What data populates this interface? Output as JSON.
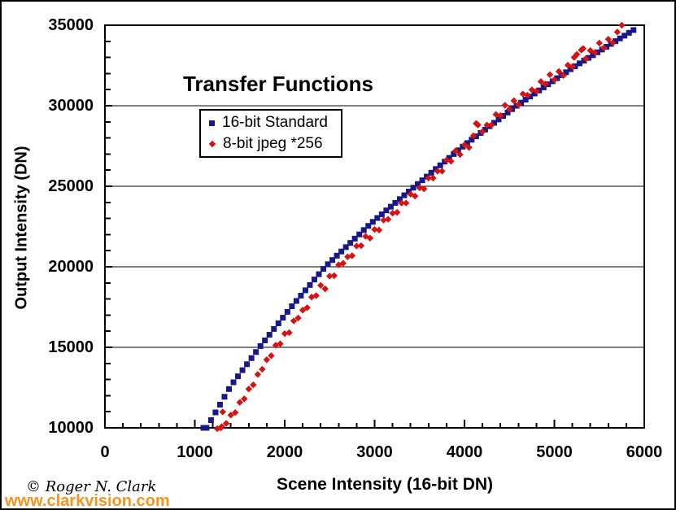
{
  "watermark": {
    "copyright": "© Roger N. Clark",
    "website": "www.clarkvision.com",
    "website_color": "#F7941D"
  },
  "chart_data": {
    "type": "scatter",
    "title": "Transfer Functions",
    "xlabel": "Scene Intensity (16-bit DN)",
    "ylabel": "Output Intensity (DN)",
    "xlim": [
      0,
      6000
    ],
    "ylim": [
      10000,
      35000
    ],
    "x_major_ticks": [
      0,
      1000,
      2000,
      3000,
      4000,
      5000,
      6000
    ],
    "x_minor_step": 200,
    "y_major_ticks": [
      10000,
      15000,
      20000,
      25000,
      30000,
      35000
    ],
    "y_minor_step": 1000,
    "grid": "horizontal-major",
    "legend_position": "upper-left-inside",
    "frame_color": "#000000",
    "series": [
      {
        "name": "16-bit Standard",
        "marker": "square",
        "color": "#181888",
        "points": [
          [
            1095,
            10000
          ],
          [
            1130,
            10000
          ],
          [
            1180,
            10480
          ],
          [
            1230,
            10960
          ],
          [
            1280,
            11440
          ],
          [
            1330,
            11930
          ],
          [
            1380,
            12410
          ],
          [
            1430,
            12830
          ],
          [
            1480,
            13200
          ],
          [
            1530,
            13580
          ],
          [
            1580,
            13950
          ],
          [
            1630,
            14330
          ],
          [
            1680,
            14710
          ],
          [
            1730,
            15080
          ],
          [
            1780,
            15430
          ],
          [
            1830,
            15780
          ],
          [
            1880,
            16140
          ],
          [
            1930,
            16490
          ],
          [
            1980,
            16840
          ],
          [
            2030,
            17200
          ],
          [
            2080,
            17550
          ],
          [
            2130,
            17880
          ],
          [
            2180,
            18210
          ],
          [
            2230,
            18540
          ],
          [
            2280,
            18870
          ],
          [
            2330,
            19210
          ],
          [
            2380,
            19540
          ],
          [
            2430,
            19870
          ],
          [
            2480,
            20160
          ],
          [
            2530,
            20420
          ],
          [
            2580,
            20690
          ],
          [
            2630,
            20950
          ],
          [
            2680,
            21220
          ],
          [
            2730,
            21480
          ],
          [
            2780,
            21750
          ],
          [
            2830,
            22010
          ],
          [
            2880,
            22280
          ],
          [
            2930,
            22540
          ],
          [
            2980,
            22790
          ],
          [
            3030,
            23030
          ],
          [
            3080,
            23260
          ],
          [
            3130,
            23500
          ],
          [
            3180,
            23730
          ],
          [
            3230,
            23970
          ],
          [
            3280,
            24200
          ],
          [
            3330,
            24440
          ],
          [
            3380,
            24670
          ],
          [
            3430,
            24910
          ],
          [
            3480,
            25140
          ],
          [
            3530,
            25370
          ],
          [
            3580,
            25600
          ],
          [
            3630,
            25840
          ],
          [
            3680,
            26070
          ],
          [
            3730,
            26300
          ],
          [
            3780,
            26530
          ],
          [
            3830,
            26760
          ],
          [
            3880,
            27000
          ],
          [
            3930,
            27230
          ],
          [
            3980,
            27460
          ],
          [
            4030,
            27680
          ],
          [
            4080,
            27890
          ],
          [
            4130,
            28100
          ],
          [
            4180,
            28310
          ],
          [
            4230,
            28520
          ],
          [
            4280,
            28730
          ],
          [
            4330,
            28940
          ],
          [
            4380,
            29150
          ],
          [
            4430,
            29370
          ],
          [
            4480,
            29580
          ],
          [
            4530,
            29790
          ],
          [
            4580,
            30000
          ],
          [
            4630,
            30190
          ],
          [
            4680,
            30380
          ],
          [
            4730,
            30570
          ],
          [
            4780,
            30760
          ],
          [
            4830,
            30950
          ],
          [
            4880,
            31140
          ],
          [
            4930,
            31330
          ],
          [
            4980,
            31520
          ],
          [
            5030,
            31710
          ],
          [
            5080,
            31900
          ],
          [
            5130,
            32080
          ],
          [
            5180,
            32270
          ],
          [
            5230,
            32450
          ],
          [
            5280,
            32630
          ],
          [
            5330,
            32800
          ],
          [
            5380,
            32970
          ],
          [
            5430,
            33140
          ],
          [
            5480,
            33320
          ],
          [
            5530,
            33490
          ],
          [
            5580,
            33660
          ],
          [
            5630,
            33840
          ],
          [
            5680,
            34010
          ],
          [
            5730,
            34180
          ],
          [
            5780,
            34350
          ],
          [
            5830,
            34530
          ],
          [
            5880,
            34700
          ]
        ]
      },
      {
        "name": "8-bit jpeg *256",
        "marker": "diamond",
        "color": "#D81111",
        "points": [
          [
            1250,
            9950
          ],
          [
            1290,
            10000
          ],
          [
            1300,
            10080
          ],
          [
            1310,
            10990
          ],
          [
            1350,
            10280
          ],
          [
            1400,
            10790
          ],
          [
            1450,
            10950
          ],
          [
            1500,
            11580
          ],
          [
            1550,
            11800
          ],
          [
            1600,
            12410
          ],
          [
            1650,
            12670
          ],
          [
            1700,
            13320
          ],
          [
            1750,
            13640
          ],
          [
            1800,
            14230
          ],
          [
            1850,
            14480
          ],
          [
            1900,
            15130
          ],
          [
            1950,
            15220
          ],
          [
            2000,
            15850
          ],
          [
            2050,
            15910
          ],
          [
            2100,
            16640
          ],
          [
            2150,
            16820
          ],
          [
            2200,
            17310
          ],
          [
            2250,
            17460
          ],
          [
            2300,
            18120
          ],
          [
            2350,
            18210
          ],
          [
            2400,
            18850
          ],
          [
            2450,
            18630
          ],
          [
            2500,
            19420
          ],
          [
            2550,
            19450
          ],
          [
            2600,
            20120
          ],
          [
            2650,
            20220
          ],
          [
            2700,
            20620
          ],
          [
            2750,
            20690
          ],
          [
            2800,
            21290
          ],
          [
            2850,
            21310
          ],
          [
            2900,
            21890
          ],
          [
            2950,
            21780
          ],
          [
            3000,
            22320
          ],
          [
            3050,
            22280
          ],
          [
            3100,
            22900
          ],
          [
            3150,
            22950
          ],
          [
            3200,
            23330
          ],
          [
            3250,
            23380
          ],
          [
            3300,
            23960
          ],
          [
            3350,
            23960
          ],
          [
            3400,
            24510
          ],
          [
            3450,
            24390
          ],
          [
            3500,
            24900
          ],
          [
            3550,
            24840
          ],
          [
            3600,
            25510
          ],
          [
            3650,
            25510
          ],
          [
            3700,
            25940
          ],
          [
            3750,
            25940
          ],
          [
            3800,
            26620
          ],
          [
            3850,
            26550
          ],
          [
            3900,
            27200
          ],
          [
            3950,
            26970
          ],
          [
            4000,
            27570
          ],
          [
            4050,
            27410
          ],
          [
            4100,
            28140
          ],
          [
            4130,
            28900
          ],
          [
            4150,
            28810
          ],
          [
            4200,
            28390
          ],
          [
            4250,
            28800
          ],
          [
            4300,
            28800
          ],
          [
            4350,
            29460
          ],
          [
            4400,
            29390
          ],
          [
            4450,
            30030
          ],
          [
            4500,
            29790
          ],
          [
            4550,
            30310
          ],
          [
            4600,
            30070
          ],
          [
            4650,
            30730
          ],
          [
            4700,
            30650
          ],
          [
            4750,
            30990
          ],
          [
            4800,
            30910
          ],
          [
            4850,
            31500
          ],
          [
            4900,
            31350
          ],
          [
            4950,
            31930
          ],
          [
            5000,
            31610
          ],
          [
            5050,
            32130
          ],
          [
            5100,
            31880
          ],
          [
            5150,
            32520
          ],
          [
            5200,
            32430
          ],
          [
            5220,
            33000
          ],
          [
            5250,
            33190
          ],
          [
            5300,
            33460
          ],
          [
            5320,
            33550
          ],
          [
            5350,
            32930
          ],
          [
            5400,
            33430
          ],
          [
            5450,
            33300
          ],
          [
            5500,
            33890
          ],
          [
            5550,
            33590
          ],
          [
            5600,
            34130
          ],
          [
            5650,
            33910
          ],
          [
            5700,
            34580
          ],
          [
            5750,
            35000
          ]
        ]
      }
    ]
  }
}
